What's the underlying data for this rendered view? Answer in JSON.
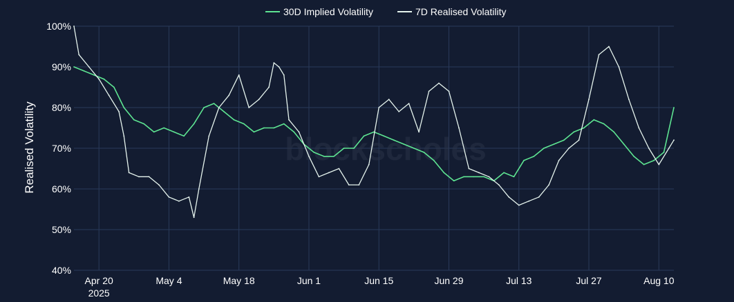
{
  "chart_data": {
    "type": "line",
    "title": "",
    "xlabel": "",
    "ylabel": "Realised Volatility",
    "ylim": [
      40,
      100
    ],
    "y_ticks": [
      "40%",
      "50%",
      "60%",
      "70%",
      "80%",
      "90%",
      "100%"
    ],
    "x_ticks": [
      {
        "date": "2025-04-20",
        "label": "Apr 20",
        "sublabel": "2025"
      },
      {
        "date": "2025-05-04",
        "label": "May 4"
      },
      {
        "date": "2025-05-18",
        "label": "May 18"
      },
      {
        "date": "2025-06-01",
        "label": "Jun 1"
      },
      {
        "date": "2025-06-15",
        "label": "Jun 15"
      },
      {
        "date": "2025-06-29",
        "label": "Jun 29"
      },
      {
        "date": "2025-07-13",
        "label": "Jul 13"
      },
      {
        "date": "2025-07-27",
        "label": "Jul 27"
      },
      {
        "date": "2025-08-10",
        "label": "Aug 10"
      }
    ],
    "x_range": [
      "2025-04-15",
      "2025-08-13"
    ],
    "grid": true,
    "legend_position": "top-center",
    "watermark": "blockscholes",
    "series": [
      {
        "name": "30D Implied Volatility",
        "color": "#5ee592",
        "x": [
          "2025-04-15",
          "2025-04-17",
          "2025-04-19",
          "2025-04-21",
          "2025-04-23",
          "2025-04-25",
          "2025-04-27",
          "2025-04-29",
          "2025-05-01",
          "2025-05-03",
          "2025-05-05",
          "2025-05-07",
          "2025-05-09",
          "2025-05-11",
          "2025-05-13",
          "2025-05-15",
          "2025-05-17",
          "2025-05-19",
          "2025-05-21",
          "2025-05-23",
          "2025-05-25",
          "2025-05-27",
          "2025-05-29",
          "2025-05-31",
          "2025-06-02",
          "2025-06-04",
          "2025-06-06",
          "2025-06-08",
          "2025-06-10",
          "2025-06-12",
          "2025-06-14",
          "2025-06-16",
          "2025-06-18",
          "2025-06-20",
          "2025-06-22",
          "2025-06-24",
          "2025-06-26",
          "2025-06-28",
          "2025-06-30",
          "2025-07-02",
          "2025-07-04",
          "2025-07-06",
          "2025-07-08",
          "2025-07-10",
          "2025-07-12",
          "2025-07-14",
          "2025-07-16",
          "2025-07-18",
          "2025-07-20",
          "2025-07-22",
          "2025-07-24",
          "2025-07-26",
          "2025-07-28",
          "2025-07-30",
          "2025-08-01",
          "2025-08-03",
          "2025-08-05",
          "2025-08-07",
          "2025-08-09",
          "2025-08-11",
          "2025-08-13"
        ],
        "values": [
          90,
          89,
          88,
          87,
          85,
          80,
          77,
          76,
          74,
          75,
          74,
          73,
          76,
          80,
          81,
          79,
          77,
          76,
          74,
          75,
          75,
          76,
          74,
          71,
          69,
          68,
          68,
          70,
          70,
          73,
          74,
          73,
          72,
          71,
          70,
          69,
          67,
          64,
          62,
          63,
          63,
          63,
          62,
          64,
          63,
          67,
          68,
          70,
          71,
          72,
          74,
          75,
          77,
          76,
          74,
          71,
          68,
          66,
          67,
          69,
          80
        ]
      },
      {
        "name": "7D Realised Volatility",
        "color": "#e6f4ee",
        "x": [
          "2025-04-15",
          "2025-04-16",
          "2025-04-18",
          "2025-04-20",
          "2025-04-22",
          "2025-04-24",
          "2025-04-25",
          "2025-04-26",
          "2025-04-28",
          "2025-04-30",
          "2025-05-02",
          "2025-05-04",
          "2025-05-06",
          "2025-05-08",
          "2025-05-09",
          "2025-05-10",
          "2025-05-12",
          "2025-05-14",
          "2025-05-16",
          "2025-05-18",
          "2025-05-20",
          "2025-05-22",
          "2025-05-24",
          "2025-05-25",
          "2025-05-26",
          "2025-05-27",
          "2025-05-28",
          "2025-05-30",
          "2025-06-01",
          "2025-06-03",
          "2025-06-05",
          "2025-06-07",
          "2025-06-09",
          "2025-06-11",
          "2025-06-13",
          "2025-06-15",
          "2025-06-17",
          "2025-06-19",
          "2025-06-21",
          "2025-06-23",
          "2025-06-25",
          "2025-06-27",
          "2025-06-29",
          "2025-07-01",
          "2025-07-03",
          "2025-07-05",
          "2025-07-07",
          "2025-07-09",
          "2025-07-11",
          "2025-07-13",
          "2025-07-15",
          "2025-07-17",
          "2025-07-19",
          "2025-07-21",
          "2025-07-23",
          "2025-07-25",
          "2025-07-27",
          "2025-07-29",
          "2025-07-31",
          "2025-08-02",
          "2025-08-04",
          "2025-08-06",
          "2025-08-08",
          "2025-08-10",
          "2025-08-12",
          "2025-08-13"
        ],
        "values": [
          100,
          93,
          90,
          87,
          83,
          79,
          73,
          64,
          63,
          63,
          61,
          58,
          57,
          58,
          53,
          60,
          73,
          80,
          83,
          88,
          80,
          82,
          85,
          91,
          90,
          88,
          77,
          74,
          68,
          63,
          64,
          65,
          61,
          61,
          66,
          80,
          82,
          79,
          81,
          74,
          84,
          86,
          84,
          75,
          65,
          64,
          63,
          61,
          58,
          56,
          57,
          58,
          61,
          67,
          70,
          72,
          82,
          93,
          95,
          90,
          82,
          75,
          70,
          66,
          70,
          72
        ]
      }
    ]
  }
}
